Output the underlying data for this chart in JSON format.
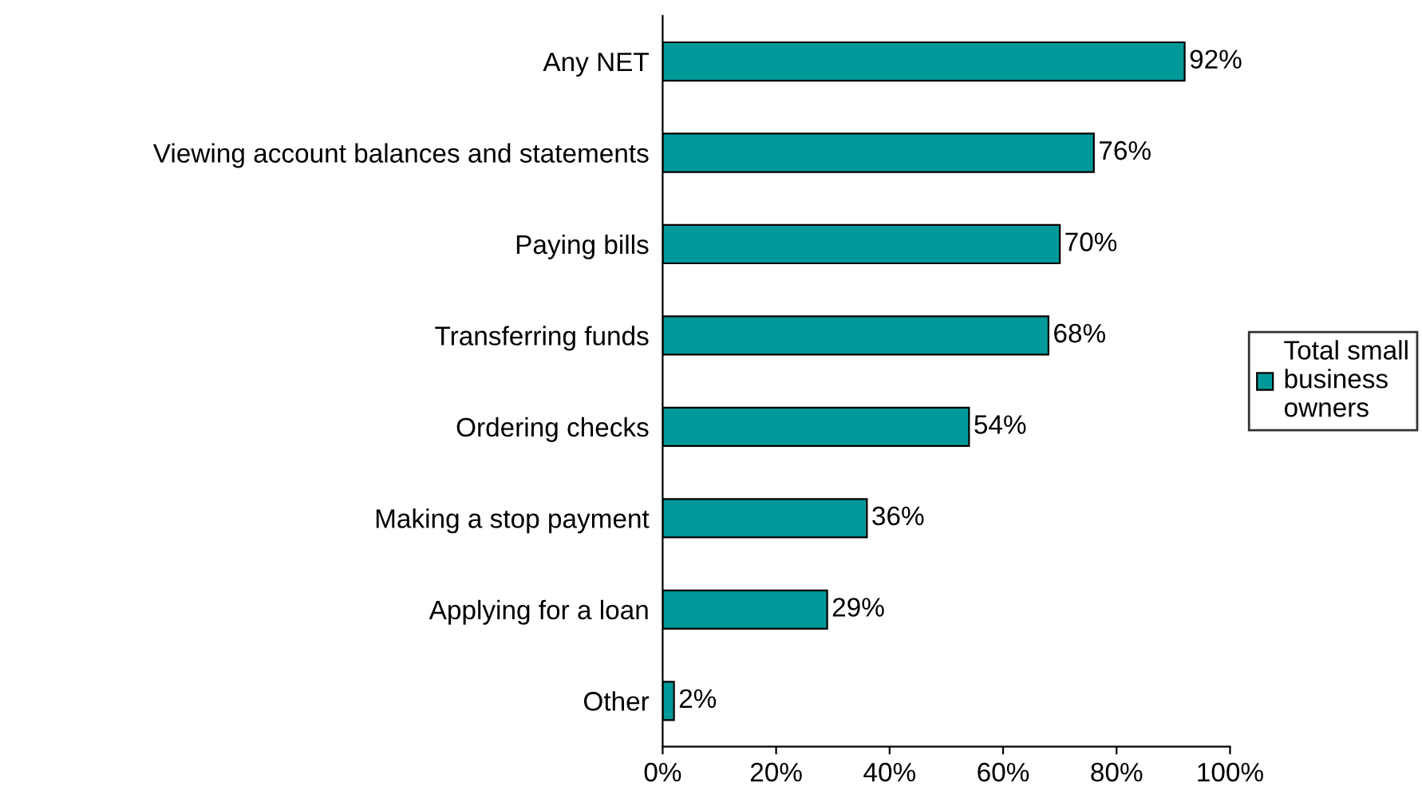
{
  "chart_data": {
    "type": "bar",
    "orientation": "horizontal",
    "categories": [
      "Any NET",
      "Viewing account balances and statements",
      "Paying bills",
      "Transferring funds",
      "Ordering checks",
      "Making a stop payment",
      "Applying for a loan",
      "Other"
    ],
    "series": [
      {
        "name": "Total small\nbusiness\nowners",
        "color": "#009999",
        "values": [
          92,
          76,
          70,
          68,
          54,
          36,
          29,
          2
        ],
        "value_labels": [
          "92%",
          "76%",
          "70%",
          "68%",
          "54%",
          "36%",
          "29%",
          "2%"
        ]
      }
    ],
    "xlim": [
      0,
      100
    ],
    "xticks": [
      {
        "value": 0,
        "label": "0%"
      },
      {
        "value": 20,
        "label": "20%"
      },
      {
        "value": 40,
        "label": "40%"
      },
      {
        "value": 60,
        "label": "60%"
      },
      {
        "value": 80,
        "label": "80%"
      },
      {
        "value": 100,
        "label": "100%"
      }
    ],
    "legend": "right",
    "grid": false
  }
}
